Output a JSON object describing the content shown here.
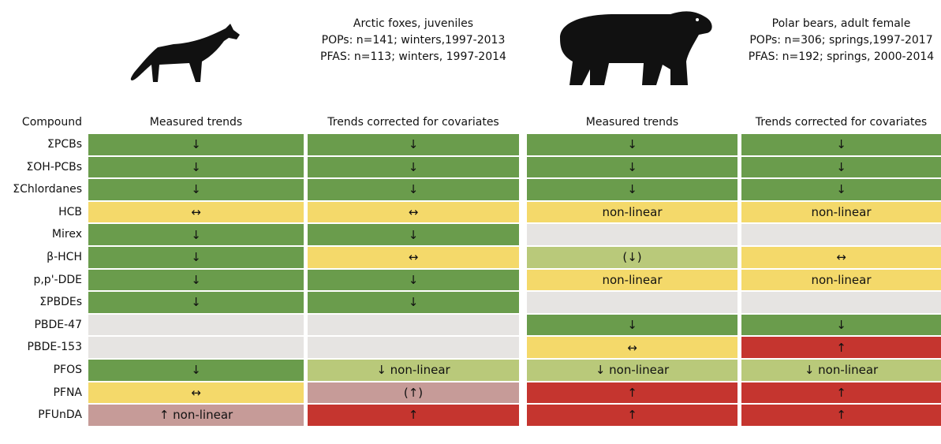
{
  "header": {
    "compound_label": "Compound",
    "groups": [
      {
        "species": "Arctic foxes, juveniles",
        "details": [
          "POPs: n=141; winters,1997-2013",
          "PFAS: n=113; winters, 1997-2014"
        ]
      },
      {
        "species": "Polar bears, adult female",
        "details": [
          "POPs: n=306; springs,1997-2017",
          "PFAS: n=192; springs, 2000-2014"
        ]
      }
    ],
    "columns": [
      "Measured trends",
      "Trends corrected for covariates",
      "Measured trends",
      "Trends corrected for covariates"
    ]
  },
  "table": {
    "rows": [
      {
        "compound": "ΣPCBs",
        "cells": [
          {
            "text": "↓",
            "color": "#6a9c4c"
          },
          {
            "text": "↓",
            "color": "#6a9c4c"
          },
          {
            "text": "↓",
            "color": "#6a9c4c"
          },
          {
            "text": "↓",
            "color": "#6a9c4c"
          }
        ]
      },
      {
        "compound": "ΣOH-PCBs",
        "cells": [
          {
            "text": "↓",
            "color": "#6a9c4c"
          },
          {
            "text": "↓",
            "color": "#6a9c4c"
          },
          {
            "text": "↓",
            "color": "#6a9c4c"
          },
          {
            "text": "↓",
            "color": "#6a9c4c"
          }
        ]
      },
      {
        "compound": "ΣChlordanes",
        "cells": [
          {
            "text": "↓",
            "color": "#6a9c4c"
          },
          {
            "text": "↓",
            "color": "#6a9c4c"
          },
          {
            "text": "↓",
            "color": "#6a9c4c"
          },
          {
            "text": "↓",
            "color": "#6a9c4c"
          }
        ]
      },
      {
        "compound": "HCB",
        "cells": [
          {
            "text": "↔",
            "color": "#f4d96a"
          },
          {
            "text": "↔",
            "color": "#f4d96a"
          },
          {
            "text": "non-linear",
            "color": "#f4d96a"
          },
          {
            "text": "non-linear",
            "color": "#f4d96a"
          }
        ]
      },
      {
        "compound": "Mirex",
        "cells": [
          {
            "text": "↓",
            "color": "#6a9c4c"
          },
          {
            "text": "↓",
            "color": "#6a9c4c"
          },
          {
            "color": "#e6e4e2"
          },
          {
            "color": "#e6e4e2"
          }
        ]
      },
      {
        "compound": "β-HCH",
        "cells": [
          {
            "text": "↓",
            "color": "#6a9c4c"
          },
          {
            "text": "↔",
            "color": "#f4d96a"
          },
          {
            "text": "(↓)",
            "color": "#b9c97a"
          },
          {
            "text": "↔",
            "color": "#f4d96a"
          }
        ]
      },
      {
        "compound": "p,p'-DDE",
        "cells": [
          {
            "text": "↓",
            "color": "#6a9c4c"
          },
          {
            "text": "↓",
            "color": "#6a9c4c"
          },
          {
            "text": "non-linear",
            "color": "#f4d96a"
          },
          {
            "text": "non-linear",
            "color": "#f4d96a"
          }
        ]
      },
      {
        "compound": "ΣPBDEs",
        "cells": [
          {
            "text": "↓",
            "color": "#6a9c4c"
          },
          {
            "text": "↓",
            "color": "#6a9c4c"
          },
          {
            "color": "#e6e4e2"
          },
          {
            "color": "#e6e4e2"
          }
        ]
      },
      {
        "compound": "PBDE-47",
        "cells": [
          {
            "color": "#e6e4e2"
          },
          {
            "color": "#e6e4e2"
          },
          {
            "text": "↓",
            "color": "#6a9c4c"
          },
          {
            "text": "↓",
            "color": "#6a9c4c"
          }
        ]
      },
      {
        "compound": "PBDE-153",
        "cells": [
          {
            "color": "#e6e4e2"
          },
          {
            "color": "#e6e4e2"
          },
          {
            "text": "↔",
            "color": "#f4d96a"
          },
          {
            "text": "↑",
            "color": "#c5352f"
          }
        ]
      },
      {
        "compound": "PFOS",
        "cells": [
          {
            "text": "↓",
            "color": "#6a9c4c"
          },
          {
            "text": "↓ non-linear",
            "color": "#b9c97a"
          },
          {
            "text": "↓ non-linear",
            "color": "#b9c97a"
          },
          {
            "text": "↓ non-linear",
            "color": "#b9c97a"
          }
        ]
      },
      {
        "compound": "PFNA",
        "cells": [
          {
            "text": "↔",
            "color": "#f4d96a"
          },
          {
            "text": "(↑)",
            "color": "#c69b98"
          },
          {
            "text": "↑",
            "color": "#c5352f"
          },
          {
            "text": "↑",
            "color": "#c5352f"
          }
        ]
      },
      {
        "compound": "PFUnDA",
        "cells": [
          {
            "text": "↑ non-linear",
            "color": "#c69b98"
          },
          {
            "text": "↑",
            "color": "#c5352f"
          },
          {
            "text": "↑",
            "color": "#c5352f"
          },
          {
            "text": "↑",
            "color": "#c5352f"
          }
        ]
      }
    ]
  }
}
